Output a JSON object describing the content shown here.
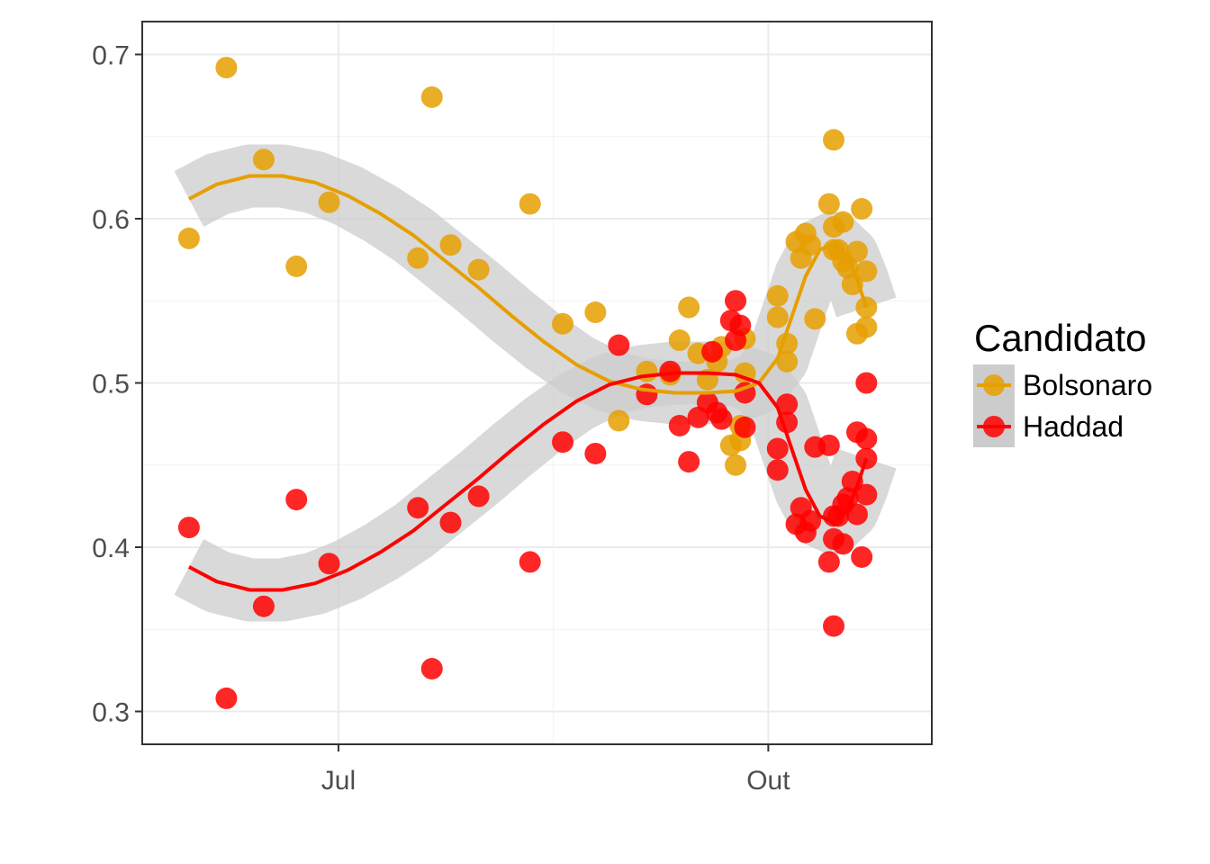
{
  "chart_data": {
    "type": "scatter",
    "title": "",
    "xlabel": "",
    "ylabel": "",
    "x_ticks": [
      {
        "date": "2018-07-01",
        "label": "Jul"
      },
      {
        "date": "2018-10-01",
        "label": "Out"
      }
    ],
    "xlim": [
      "2018-05-20",
      "2018-11-05"
    ],
    "y_ticks": [
      {
        "value": 0.3,
        "label": "0.3"
      },
      {
        "value": 0.4,
        "label": "0.4"
      },
      {
        "value": 0.5,
        "label": "0.5"
      },
      {
        "value": 0.6,
        "label": "0.6"
      },
      {
        "value": 0.7,
        "label": "0.7"
      }
    ],
    "ylim": [
      0.28,
      0.72
    ],
    "grid": true,
    "legend": {
      "title": "Candidato",
      "position": "right"
    },
    "series": [
      {
        "name": "Bolsonaro",
        "color": "#E69F00",
        "points": [
          [
            "2018-05-30",
            0.588
          ],
          [
            "2018-06-07",
            0.692
          ],
          [
            "2018-06-15",
            0.636
          ],
          [
            "2018-06-22",
            0.571
          ],
          [
            "2018-06-29",
            0.61
          ],
          [
            "2018-07-18",
            0.576
          ],
          [
            "2018-07-21",
            0.674
          ],
          [
            "2018-07-25",
            0.584
          ],
          [
            "2018-07-31",
            0.569
          ],
          [
            "2018-08-11",
            0.609
          ],
          [
            "2018-08-18",
            0.536
          ],
          [
            "2018-08-25",
            0.543
          ],
          [
            "2018-08-30",
            0.477
          ],
          [
            "2018-09-05",
            0.507
          ],
          [
            "2018-09-10",
            0.505
          ],
          [
            "2018-09-12",
            0.526
          ],
          [
            "2018-09-14",
            0.546
          ],
          [
            "2018-09-16",
            0.518
          ],
          [
            "2018-09-18",
            0.502
          ],
          [
            "2018-09-20",
            0.513
          ],
          [
            "2018-09-21",
            0.522
          ],
          [
            "2018-09-23",
            0.462
          ],
          [
            "2018-09-25",
            0.465
          ],
          [
            "2018-09-25",
            0.474
          ],
          [
            "2018-09-24",
            0.45
          ],
          [
            "2018-09-26",
            0.506
          ],
          [
            "2018-09-26",
            0.527
          ],
          [
            "2018-10-03",
            0.553
          ],
          [
            "2018-10-03",
            0.54
          ],
          [
            "2018-10-05",
            0.524
          ],
          [
            "2018-10-05",
            0.513
          ],
          [
            "2018-10-07",
            0.586
          ],
          [
            "2018-10-08",
            0.576
          ],
          [
            "2018-10-09",
            0.591
          ],
          [
            "2018-10-10",
            0.584
          ],
          [
            "2018-10-11",
            0.539
          ],
          [
            "2018-10-14",
            0.609
          ],
          [
            "2018-10-15",
            0.595
          ],
          [
            "2018-10-15",
            0.581
          ],
          [
            "2018-10-15",
            0.648
          ],
          [
            "2018-10-16",
            0.581
          ],
          [
            "2018-10-17",
            0.598
          ],
          [
            "2018-10-17",
            0.574
          ],
          [
            "2018-10-18",
            0.57
          ],
          [
            "2018-10-19",
            0.56
          ],
          [
            "2018-10-20",
            0.53
          ],
          [
            "2018-10-20",
            0.58
          ],
          [
            "2018-10-21",
            0.606
          ],
          [
            "2018-10-22",
            0.568
          ],
          [
            "2018-10-22",
            0.546
          ],
          [
            "2018-10-22",
            0.534
          ]
        ],
        "trend": [
          [
            "2018-05-30",
            0.612
          ],
          [
            "2018-06-05",
            0.621
          ],
          [
            "2018-06-12",
            0.626
          ],
          [
            "2018-06-19",
            0.626
          ],
          [
            "2018-06-26",
            0.622
          ],
          [
            "2018-07-03",
            0.614
          ],
          [
            "2018-07-10",
            0.603
          ],
          [
            "2018-07-17",
            0.59
          ],
          [
            "2018-07-24",
            0.574
          ],
          [
            "2018-07-31",
            0.558
          ],
          [
            "2018-08-07",
            0.541
          ],
          [
            "2018-08-14",
            0.525
          ],
          [
            "2018-08-21",
            0.511
          ],
          [
            "2018-08-28",
            0.501
          ],
          [
            "2018-09-04",
            0.496
          ],
          [
            "2018-09-11",
            0.494
          ],
          [
            "2018-09-18",
            0.494
          ],
          [
            "2018-09-24",
            0.495
          ],
          [
            "2018-09-29",
            0.5
          ],
          [
            "2018-10-03",
            0.515
          ],
          [
            "2018-10-06",
            0.54
          ],
          [
            "2018-10-09",
            0.565
          ],
          [
            "2018-10-12",
            0.581
          ],
          [
            "2018-10-15",
            0.585
          ],
          [
            "2018-10-18",
            0.577
          ],
          [
            "2018-10-20",
            0.563
          ],
          [
            "2018-10-22",
            0.546
          ]
        ]
      },
      {
        "name": "Haddad",
        "color": "#FF0000",
        "points": [
          [
            "2018-05-30",
            0.412
          ],
          [
            "2018-06-07",
            0.308
          ],
          [
            "2018-06-15",
            0.364
          ],
          [
            "2018-06-22",
            0.429
          ],
          [
            "2018-06-29",
            0.39
          ],
          [
            "2018-07-18",
            0.424
          ],
          [
            "2018-07-21",
            0.326
          ],
          [
            "2018-07-25",
            0.415
          ],
          [
            "2018-07-31",
            0.431
          ],
          [
            "2018-08-11",
            0.391
          ],
          [
            "2018-08-18",
            0.464
          ],
          [
            "2018-08-25",
            0.457
          ],
          [
            "2018-08-30",
            0.523
          ],
          [
            "2018-09-05",
            0.493
          ],
          [
            "2018-09-10",
            0.507
          ],
          [
            "2018-09-12",
            0.474
          ],
          [
            "2018-09-14",
            0.452
          ],
          [
            "2018-09-16",
            0.479
          ],
          [
            "2018-09-18",
            0.488
          ],
          [
            "2018-09-20",
            0.482
          ],
          [
            "2018-09-21",
            0.478
          ],
          [
            "2018-09-23",
            0.538
          ],
          [
            "2018-09-25",
            0.535
          ],
          [
            "2018-09-24",
            0.55
          ],
          [
            "2018-09-24",
            0.526
          ],
          [
            "2018-09-26",
            0.494
          ],
          [
            "2018-09-26",
            0.473
          ],
          [
            "2018-10-03",
            0.447
          ],
          [
            "2018-10-03",
            0.46
          ],
          [
            "2018-10-05",
            0.476
          ],
          [
            "2018-10-05",
            0.487
          ],
          [
            "2018-10-07",
            0.414
          ],
          [
            "2018-10-08",
            0.424
          ],
          [
            "2018-10-09",
            0.409
          ],
          [
            "2018-10-10",
            0.416
          ],
          [
            "2018-10-11",
            0.461
          ],
          [
            "2018-10-14",
            0.391
          ],
          [
            "2018-10-15",
            0.405
          ],
          [
            "2018-10-15",
            0.419
          ],
          [
            "2018-10-15",
            0.352
          ],
          [
            "2018-10-16",
            0.419
          ],
          [
            "2018-10-17",
            0.402
          ],
          [
            "2018-10-17",
            0.426
          ],
          [
            "2018-10-18",
            0.43
          ],
          [
            "2018-10-19",
            0.44
          ],
          [
            "2018-10-20",
            0.47
          ],
          [
            "2018-10-20",
            0.42
          ],
          [
            "2018-10-21",
            0.394
          ],
          [
            "2018-10-22",
            0.432
          ],
          [
            "2018-10-22",
            0.454
          ],
          [
            "2018-10-22",
            0.466
          ],
          [
            "2018-10-22",
            0.5
          ],
          [
            "2018-10-14",
            0.462
          ],
          [
            "2018-09-19",
            0.519
          ]
        ],
        "trend": [
          [
            "2018-05-30",
            0.388
          ],
          [
            "2018-06-05",
            0.379
          ],
          [
            "2018-06-12",
            0.374
          ],
          [
            "2018-06-19",
            0.374
          ],
          [
            "2018-06-26",
            0.378
          ],
          [
            "2018-07-03",
            0.386
          ],
          [
            "2018-07-10",
            0.397
          ],
          [
            "2018-07-17",
            0.41
          ],
          [
            "2018-07-24",
            0.426
          ],
          [
            "2018-07-31",
            0.442
          ],
          [
            "2018-08-07",
            0.459
          ],
          [
            "2018-08-14",
            0.475
          ],
          [
            "2018-08-21",
            0.489
          ],
          [
            "2018-08-28",
            0.499
          ],
          [
            "2018-09-04",
            0.504
          ],
          [
            "2018-09-11",
            0.506
          ],
          [
            "2018-09-18",
            0.506
          ],
          [
            "2018-09-24",
            0.505
          ],
          [
            "2018-09-29",
            0.5
          ],
          [
            "2018-10-03",
            0.485
          ],
          [
            "2018-10-06",
            0.46
          ],
          [
            "2018-10-09",
            0.435
          ],
          [
            "2018-10-12",
            0.419
          ],
          [
            "2018-10-15",
            0.415
          ],
          [
            "2018-10-18",
            0.423
          ],
          [
            "2018-10-20",
            0.437
          ],
          [
            "2018-10-22",
            0.454
          ]
        ]
      }
    ],
    "confidence_band_color": "#cccccc"
  }
}
